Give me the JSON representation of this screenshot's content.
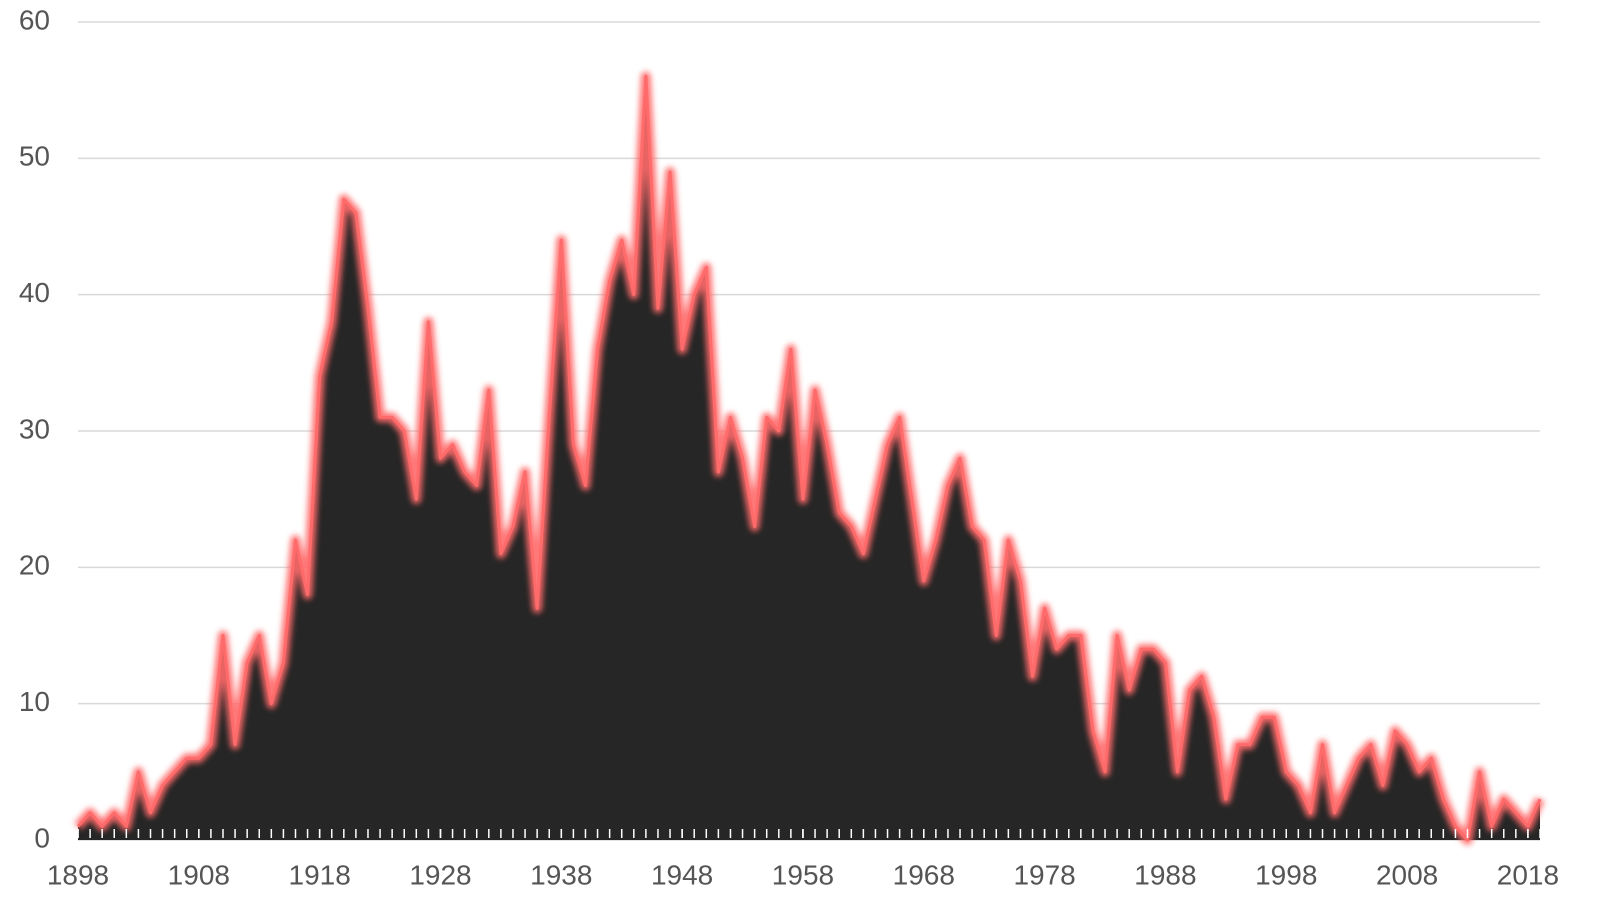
{
  "chart_data": {
    "type": "area",
    "x": [
      1898,
      1899,
      1900,
      1901,
      1902,
      1903,
      1904,
      1905,
      1906,
      1907,
      1908,
      1909,
      1910,
      1911,
      1912,
      1913,
      1914,
      1915,
      1916,
      1917,
      1918,
      1919,
      1920,
      1921,
      1922,
      1923,
      1924,
      1925,
      1926,
      1927,
      1928,
      1929,
      1930,
      1931,
      1932,
      1933,
      1934,
      1935,
      1936,
      1937,
      1938,
      1939,
      1940,
      1941,
      1942,
      1943,
      1944,
      1945,
      1946,
      1947,
      1948,
      1949,
      1950,
      1951,
      1952,
      1953,
      1954,
      1955,
      1956,
      1957,
      1958,
      1959,
      1960,
      1961,
      1962,
      1963,
      1964,
      1965,
      1966,
      1967,
      1968,
      1969,
      1970,
      1971,
      1972,
      1973,
      1974,
      1975,
      1976,
      1977,
      1978,
      1979,
      1980,
      1981,
      1982,
      1983,
      1984,
      1985,
      1986,
      1987,
      1988,
      1989,
      1990,
      1991,
      1992,
      1993,
      1994,
      1995,
      1996,
      1997,
      1998,
      1999,
      2000,
      2001,
      2002,
      2003,
      2004,
      2005,
      2006,
      2007,
      2008,
      2009,
      2010,
      2011,
      2012,
      2013,
      2014,
      2015,
      2016,
      2017,
      2018,
      2019
    ],
    "values": [
      1,
      2,
      1,
      2,
      1,
      5,
      2,
      4,
      5,
      6,
      6,
      7,
      15,
      7,
      13,
      15,
      10,
      13,
      22,
      18,
      34,
      38,
      47,
      46,
      39,
      31,
      31,
      30,
      25,
      38,
      28,
      29,
      27,
      26,
      33,
      21,
      23,
      27,
      17,
      31,
      44,
      29,
      26,
      36,
      41,
      44,
      40,
      56,
      39,
      49,
      36,
      40,
      42,
      27,
      31,
      28,
      23,
      31,
      30,
      36,
      25,
      33,
      29,
      24,
      23,
      21,
      25,
      29,
      31,
      25,
      19,
      22,
      26,
      28,
      23,
      22,
      15,
      22,
      19,
      12,
      17,
      14,
      15,
      15,
      8,
      5,
      15,
      11,
      14,
      14,
      13,
      5,
      11,
      12,
      9,
      3,
      7,
      7,
      9,
      9,
      5,
      4,
      2,
      7,
      2,
      4,
      6,
      7,
      4,
      8,
      7,
      5,
      6,
      3,
      1,
      0,
      5,
      1,
      3,
      2,
      1,
      3
    ],
    "color": "#262626",
    "glow_color": "#ff6b6b",
    "xlim": [
      1898,
      2019
    ],
    "xticks": [
      1898,
      1908,
      1918,
      1928,
      1938,
      1948,
      1958,
      1968,
      1978,
      1988,
      1998,
      2008,
      2018
    ],
    "ylim": [
      0,
      60
    ],
    "yticks": [
      0,
      10,
      20,
      30,
      40,
      50,
      60
    ],
    "grid": true
  }
}
